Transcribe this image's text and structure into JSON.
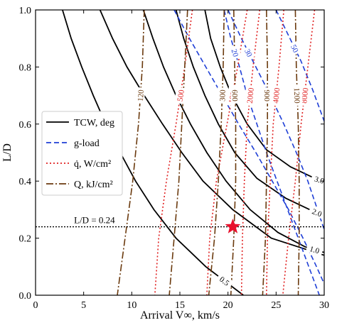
{
  "chart_data": {
    "type": "line",
    "xlabel": "Arrival V∞, km/s",
    "ylabel": "L/D",
    "xlim": [
      0,
      30
    ],
    "ylim": [
      0,
      1.0
    ],
    "xticks": [
      0,
      5,
      10,
      15,
      20,
      25,
      30
    ],
    "yticks": [
      0.0,
      0.2,
      0.4,
      0.6,
      0.8,
      1.0
    ],
    "xtick_labels": [
      "0",
      "5",
      "10",
      "15",
      "20",
      "25",
      "30"
    ],
    "ytick_labels": [
      "0.0",
      "0.2",
      "0.4",
      "0.6",
      "0.8",
      "1.0"
    ],
    "grid": false,
    "legend_position": "center-left",
    "legend": [
      {
        "label": "TCW, deg",
        "style": "solid",
        "color": "#000000"
      },
      {
        "label": "g-load",
        "style": "dashed",
        "color": "#1f3fd6"
      },
      {
        "label": "q̇, W/cm²",
        "style": "dotted",
        "color": "#e02020"
      },
      {
        "label": "Q, kJ/cm²",
        "style": "dashdot",
        "color": "#6b3a0e"
      }
    ],
    "hline": {
      "y": 0.24,
      "label": "L/D = 0.24"
    },
    "marker": {
      "x": 20.5,
      "y": 0.24,
      "shape": "star",
      "color": "#e8112d"
    },
    "series": [
      {
        "group": "TCW",
        "label": "0.5",
        "color": "#000000",
        "dash": "",
        "points": [
          [
            2.8,
            1.0
          ],
          [
            3.7,
            0.9
          ],
          [
            4.8,
            0.8
          ],
          [
            6.0,
            0.7
          ],
          [
            7.3,
            0.6
          ],
          [
            8.8,
            0.5
          ],
          [
            10.4,
            0.4
          ],
          [
            12.3,
            0.3
          ],
          [
            14.6,
            0.2
          ],
          [
            17.7,
            0.1
          ],
          [
            21.6,
            0.0
          ]
        ]
      },
      {
        "group": "TCW",
        "label": "",
        "color": "#000000",
        "dash": "",
        "points": [
          [
            6.7,
            1.0
          ],
          [
            8.0,
            0.9
          ],
          [
            9.5,
            0.8
          ],
          [
            11.3,
            0.7
          ],
          [
            13.2,
            0.6
          ],
          [
            15.2,
            0.5
          ],
          [
            17.4,
            0.4
          ],
          [
            20.5,
            0.3
          ],
          [
            24.5,
            0.2
          ],
          [
            30.0,
            0.14
          ]
        ]
      },
      {
        "group": "TCW",
        "label": "1.0",
        "color": "#000000",
        "dash": "",
        "points": [
          [
            11.2,
            1.0
          ],
          [
            12.2,
            0.9
          ],
          [
            13.3,
            0.8
          ],
          [
            14.6,
            0.7
          ],
          [
            16.1,
            0.6
          ],
          [
            17.8,
            0.5
          ],
          [
            19.8,
            0.4
          ],
          [
            22.3,
            0.3
          ],
          [
            25.2,
            0.22
          ],
          [
            28.0,
            0.17
          ],
          [
            30.0,
            0.15
          ]
        ]
      },
      {
        "group": "TCW",
        "label": "2.0",
        "color": "#000000",
        "dash": "",
        "points": [
          [
            14.6,
            1.0
          ],
          [
            15.4,
            0.9
          ],
          [
            16.4,
            0.8
          ],
          [
            17.6,
            0.7
          ],
          [
            19.0,
            0.6
          ],
          [
            20.7,
            0.5
          ],
          [
            23.0,
            0.41
          ],
          [
            26.0,
            0.34
          ],
          [
            28.5,
            0.3
          ],
          [
            30.0,
            0.28
          ]
        ]
      },
      {
        "group": "TCW",
        "label": "3.0",
        "color": "#000000",
        "dash": "",
        "points": [
          [
            17.6,
            1.0
          ],
          [
            18.2,
            0.9
          ],
          [
            19.2,
            0.8
          ],
          [
            20.4,
            0.7
          ],
          [
            22.0,
            0.6
          ],
          [
            24.0,
            0.51
          ],
          [
            26.5,
            0.45
          ],
          [
            29.0,
            0.41
          ],
          [
            30.0,
            0.4
          ]
        ]
      },
      {
        "group": "g-load",
        "label": "30",
        "color": "#1f3fd6",
        "dash": "7,4",
        "points": [
          [
            20.0,
            1.0
          ],
          [
            21.4,
            0.9
          ],
          [
            22.9,
            0.8
          ],
          [
            24.4,
            0.7
          ],
          [
            25.8,
            0.6
          ],
          [
            27.1,
            0.5
          ],
          [
            28.3,
            0.4
          ],
          [
            29.3,
            0.3
          ],
          [
            30.0,
            0.23
          ]
        ]
      },
      {
        "group": "g-load",
        "label": "50",
        "color": "#1f3fd6",
        "dash": "7,4",
        "points": [
          [
            25.0,
            1.0
          ],
          [
            26.3,
            0.91
          ],
          [
            27.6,
            0.82
          ],
          [
            28.8,
            0.72
          ],
          [
            30.0,
            0.61
          ]
        ]
      },
      {
        "group": "g-load",
        "label": "",
        "color": "#1f3fd6",
        "dash": "7,4",
        "points": [
          [
            14.4,
            1.0
          ],
          [
            16.0,
            0.9
          ],
          [
            17.7,
            0.8
          ],
          [
            19.4,
            0.7
          ],
          [
            21.1,
            0.6
          ],
          [
            22.9,
            0.5
          ],
          [
            24.6,
            0.4
          ],
          [
            26.3,
            0.3
          ],
          [
            27.8,
            0.2
          ],
          [
            29.2,
            0.1
          ],
          [
            30.0,
            0.04
          ]
        ]
      },
      {
        "group": "g-load",
        "label": "20",
        "color": "#1f3fd6",
        "dash": "7,4",
        "points": [
          [
            19.6,
            1.0
          ],
          [
            20.3,
            0.9
          ],
          [
            21.2,
            0.8
          ],
          [
            22.0,
            0.7
          ],
          [
            23.0,
            0.6
          ],
          [
            24.0,
            0.5
          ],
          [
            25.1,
            0.4
          ],
          [
            26.2,
            0.3
          ],
          [
            27.3,
            0.2
          ],
          [
            28.4,
            0.1
          ],
          [
            29.5,
            0.0
          ]
        ]
      },
      {
        "group": "heat-rate",
        "label": "500",
        "color": "#e02020",
        "dash": "2,3",
        "points": [
          [
            16.3,
            1.0
          ],
          [
            15.5,
            0.8
          ],
          [
            14.6,
            0.6
          ],
          [
            13.6,
            0.4
          ],
          [
            12.8,
            0.2
          ],
          [
            12.4,
            0.0
          ]
        ]
      },
      {
        "group": "heat-rate",
        "label": "1000",
        "color": "#e02020",
        "dash": "2,3",
        "points": [
          [
            22.0,
            1.0
          ],
          [
            21.0,
            0.8
          ],
          [
            19.9,
            0.6
          ],
          [
            18.8,
            0.4
          ],
          [
            18.1,
            0.2
          ],
          [
            17.8,
            0.0
          ]
        ]
      },
      {
        "group": "heat-rate",
        "label": "2000",
        "color": "#e02020",
        "dash": "2,3",
        "points": [
          [
            23.3,
            1.0
          ],
          [
            22.6,
            0.8
          ],
          [
            22.0,
            0.6
          ],
          [
            21.7,
            0.4
          ],
          [
            21.5,
            0.2
          ],
          [
            21.4,
            0.0
          ]
        ]
      },
      {
        "group": "heat-rate",
        "label": "4000",
        "color": "#e02020",
        "dash": "2,3",
        "points": [
          [
            25.8,
            1.0
          ],
          [
            25.3,
            0.8
          ],
          [
            24.7,
            0.6
          ],
          [
            24.4,
            0.4
          ],
          [
            24.1,
            0.2
          ],
          [
            24.0,
            0.0
          ]
        ]
      },
      {
        "group": "heat-rate",
        "label": "8000",
        "color": "#e02020",
        "dash": "2,3",
        "points": [
          [
            29.0,
            1.0
          ],
          [
            28.3,
            0.8
          ],
          [
            27.6,
            0.6
          ],
          [
            27.0,
            0.4
          ],
          [
            26.3,
            0.2
          ],
          [
            25.7,
            0.0
          ]
        ]
      },
      {
        "group": "heat-load",
        "label": "120",
        "color": "#6b3a0e",
        "dash": "10,3,2,3",
        "points": [
          [
            11.3,
            1.0
          ],
          [
            11.1,
            0.8
          ],
          [
            10.7,
            0.6
          ],
          [
            10.1,
            0.4
          ],
          [
            9.3,
            0.2
          ],
          [
            8.5,
            0.0
          ]
        ]
      },
      {
        "group": "heat-load",
        "label": "",
        "color": "#6b3a0e",
        "dash": "10,3,2,3",
        "points": [
          [
            15.8,
            1.0
          ],
          [
            15.5,
            0.8
          ],
          [
            15.2,
            0.6
          ],
          [
            14.9,
            0.4
          ],
          [
            14.4,
            0.2
          ],
          [
            13.9,
            0.0
          ]
        ]
      },
      {
        "group": "heat-load",
        "label": "300",
        "color": "#6b3a0e",
        "dash": "10,3,2,3",
        "points": [
          [
            19.6,
            1.0
          ],
          [
            19.5,
            0.8
          ],
          [
            19.3,
            0.6
          ],
          [
            19.0,
            0.4
          ],
          [
            18.6,
            0.2
          ],
          [
            18.0,
            0.0
          ]
        ]
      },
      {
        "group": "heat-load",
        "label": "600",
        "color": "#6b3a0e",
        "dash": "10,3,2,3",
        "points": [
          [
            20.6,
            1.0
          ],
          [
            20.7,
            0.8
          ],
          [
            20.8,
            0.6
          ],
          [
            20.8,
            0.4
          ],
          [
            20.6,
            0.2
          ],
          [
            20.3,
            0.0
          ]
        ]
      },
      {
        "group": "heat-load",
        "label": "900",
        "color": "#6b3a0e",
        "dash": "10,3,2,3",
        "points": [
          [
            24.0,
            1.0
          ],
          [
            24.1,
            0.8
          ],
          [
            24.1,
            0.6
          ],
          [
            24.0,
            0.4
          ],
          [
            23.9,
            0.2
          ],
          [
            23.6,
            0.0
          ]
        ]
      },
      {
        "group": "heat-load",
        "label": "1200",
        "color": "#6b3a0e",
        "dash": "10,3,2,3",
        "points": [
          [
            27.0,
            1.0
          ],
          [
            27.1,
            0.8
          ],
          [
            27.3,
            0.6
          ],
          [
            27.4,
            0.4
          ],
          [
            27.4,
            0.2
          ],
          [
            27.3,
            0.0
          ]
        ]
      }
    ]
  }
}
